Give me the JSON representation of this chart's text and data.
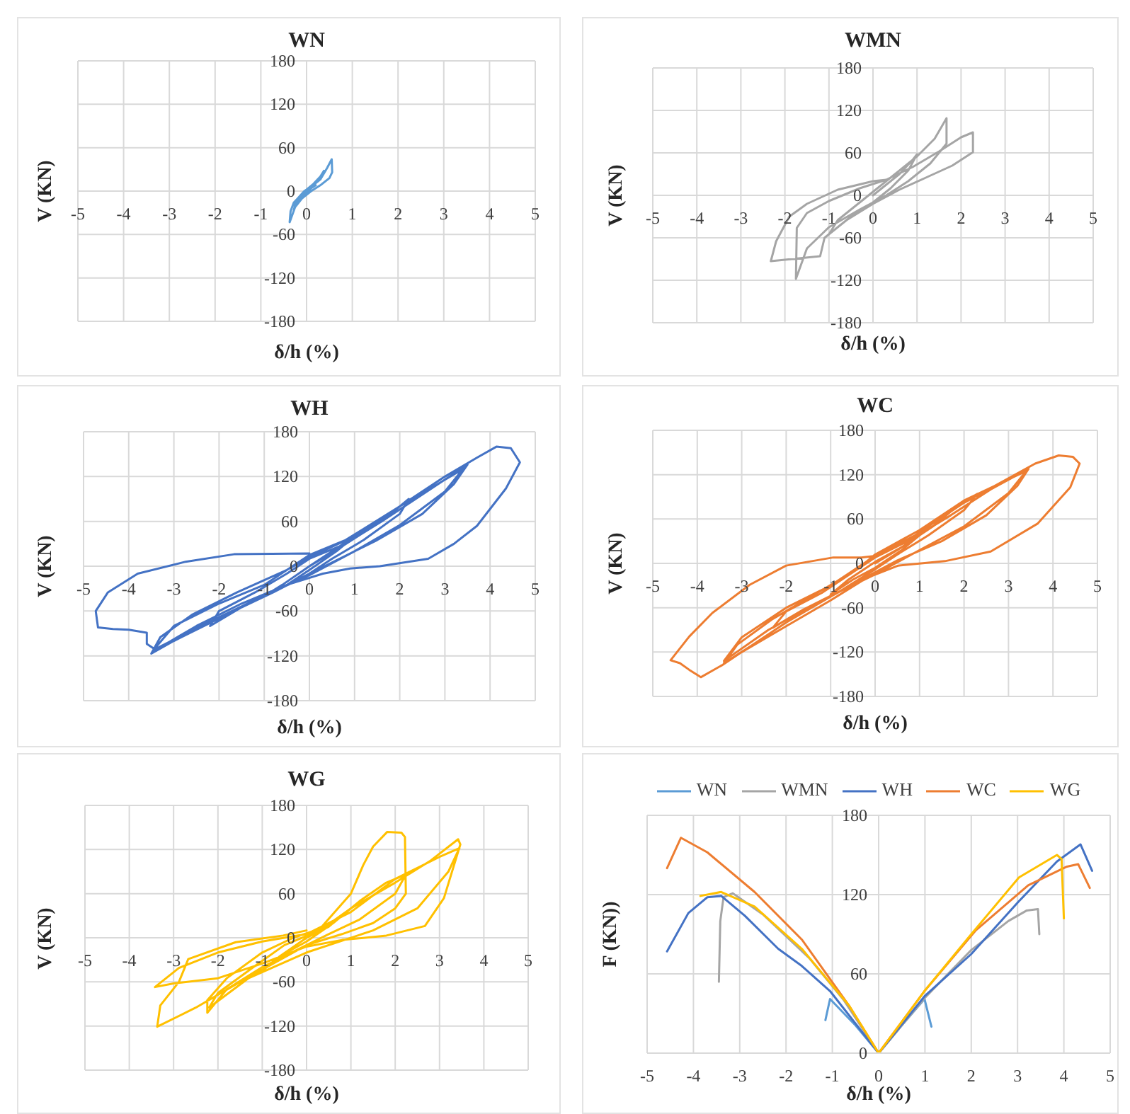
{
  "chart_data": [
    {
      "type": "line",
      "title": "WN",
      "xlabel": "δ/h (%)",
      "ylabel": "V (KN)",
      "xlim": [
        -5,
        5
      ],
      "xticks": [
        -5,
        -4,
        -3,
        -2,
        -1,
        0,
        1,
        2,
        3,
        4,
        5
      ],
      "ylim": [
        -180,
        180
      ],
      "yticks": [
        -180,
        -120,
        -60,
        0,
        60,
        120,
        180
      ],
      "grid": true,
      "marker": "none",
      "series": [
        {
          "color": "#5b9bd5",
          "x": [
            0,
            0.1,
            0.2,
            0.12,
            0,
            -0.1,
            -0.2,
            -0.12,
            0,
            0.15,
            0.3,
            0.38,
            0.3,
            0.1,
            -0.05,
            -0.2,
            -0.28,
            -0.22,
            -0.05,
            0.1,
            0.3,
            0.45,
            0.55,
            0.56,
            0.5,
            0.3,
            0.1,
            -0.1,
            -0.25,
            -0.37,
            -0.35,
            -0.28,
            -0.1,
            0.05,
            0.2
          ],
          "values": [
            0,
            6,
            12,
            6,
            -2,
            -8,
            -14,
            -6,
            2,
            10,
            20,
            28,
            18,
            4,
            -6,
            -16,
            -26,
            -12,
            0,
            6,
            16,
            32,
            44,
            26,
            18,
            8,
            0,
            -10,
            -22,
            -43,
            -28,
            -16,
            -4,
            2,
            8
          ]
        }
      ]
    },
    {
      "type": "line",
      "title": "WMN",
      "xlabel": "δ/h (%)",
      "ylabel": "V (KN)",
      "xlim": [
        -5,
        5
      ],
      "xticks": [
        -5,
        -4,
        -3,
        -2,
        -1,
        0,
        1,
        2,
        3,
        4,
        5
      ],
      "ylim": [
        -180,
        180
      ],
      "yticks": [
        -180,
        -120,
        -60,
        0,
        60,
        120,
        180
      ],
      "grid": true,
      "marker": "none",
      "series": [
        {
          "color": "#a5a5a5",
          "x": [
            0,
            0.3,
            0.6,
            0.9,
            1.0,
            0.8,
            0.4,
            0,
            -0.4,
            -0.8,
            -1.0,
            -0.8,
            -0.4,
            0,
            0.5,
            1.0,
            1.4,
            1.67,
            1.67,
            1.3,
            0.8,
            0.3,
            -0.3,
            -1.0,
            -1.5,
            -1.75,
            -1.73,
            -1.5,
            -1.0,
            -0.3,
            0.3,
            0.9,
            1.5,
            2.0,
            2.27,
            2.27,
            1.8,
            1.2,
            0.6,
            0,
            -0.6,
            -1.1,
            -1.2,
            -2.32,
            -2.2,
            -1.9,
            -1.5,
            -0.8,
            0,
            0.3
          ],
          "values": [
            0,
            15,
            30,
            50,
            58,
            35,
            10,
            -10,
            -25,
            -45,
            -55,
            -35,
            -15,
            5,
            30,
            55,
            80,
            109,
            73,
            45,
            20,
            0,
            -20,
            -45,
            -75,
            -118,
            -46,
            -25,
            -8,
            10,
            22,
            40,
            62,
            82,
            89,
            61,
            42,
            25,
            8,
            -12,
            -35,
            -60,
            -86,
            -93,
            -65,
            -30,
            -12,
            8,
            20,
            22
          ]
        }
      ]
    },
    {
      "type": "line",
      "title": "WH",
      "xlabel": "δ/h (%)",
      "ylabel": "V (KN)",
      "xlim": [
        -5,
        5
      ],
      "xticks": [
        -5,
        -4,
        -3,
        -2,
        -1,
        0,
        1,
        2,
        3,
        4,
        5
      ],
      "ylim": [
        -180,
        180
      ],
      "yticks": [
        -180,
        -120,
        -60,
        0,
        60,
        120,
        180
      ],
      "grid": true,
      "marker": "none",
      "series": [
        {
          "color": "#4472c4",
          "x": [
            0,
            0.5,
            1.0,
            0.6,
            0,
            -0.5,
            -1.0,
            -0.6,
            0,
            0.5,
            1.2,
            1.8,
            2.2,
            2.0,
            1.2,
            0.5,
            0,
            -0.8,
            -1.5,
            -2.2,
            -2.0,
            -1.2,
            -0.5,
            0,
            0.8,
            1.6,
            2.6,
            3.5,
            3.2,
            2.5,
            1.5,
            0.5,
            0,
            -1.0,
            -2.0,
            -3.0,
            -3.5,
            -3.3,
            -2.6,
            -1.6,
            -0.5,
            0,
            1.0,
            2.0,
            3.4,
            3.0,
            2.0,
            1.0,
            0,
            -1.2,
            -2.4,
            -3.45,
            -3.0,
            -2.0,
            -1.0,
            0,
            0.8,
            2.0,
            3.0,
            3.7,
            4.14,
            4.46,
            4.66,
            4.35,
            3.71,
            3.2,
            2.63,
            1.56,
            0.9,
            0.3,
            -0.5,
            -1.5,
            -2.5,
            -3.4,
            -3.6,
            -3.6,
            -4.0,
            -4.35,
            -4.68,
            -4.73,
            -4.46,
            -3.8,
            -2.74,
            -1.67,
            0
          ],
          "values": [
            0,
            20,
            40,
            20,
            -5,
            -25,
            -40,
            -25,
            0,
            18,
            45,
            70,
            90,
            70,
            35,
            10,
            -10,
            -35,
            -55,
            -80,
            -60,
            -35,
            -10,
            10,
            30,
            60,
            100,
            136,
            110,
            70,
            35,
            5,
            -10,
            -40,
            -70,
            -100,
            -117,
            -95,
            -65,
            -35,
            -5,
            12,
            40,
            80,
            130,
            100,
            55,
            20,
            -12,
            -45,
            -80,
            -112,
            -80,
            -50,
            -25,
            15,
            35,
            80,
            120,
            145,
            160,
            158,
            139,
            104,
            54,
            30,
            10,
            0,
            -3,
            -10,
            -25,
            -50,
            -80,
            -112,
            -104,
            -89,
            -85,
            -84,
            -82,
            -60,
            -35,
            -10,
            6,
            16,
            17
          ]
        }
      ]
    },
    {
      "type": "line",
      "title": "WC",
      "xlabel": "δ/h (%)",
      "ylabel": "V (KN)",
      "xlim": [
        -5,
        5
      ],
      "xticks": [
        -5,
        -4,
        -3,
        -2,
        -1,
        0,
        1,
        2,
        3,
        4,
        5
      ],
      "ylim": [
        -180,
        180
      ],
      "yticks": [
        -180,
        -120,
        -60,
        0,
        60,
        120,
        180
      ],
      "grid": true,
      "marker": "none",
      "series": [
        {
          "color": "#ed7d31",
          "x": [
            0,
            0.5,
            1.0,
            0.6,
            0,
            -0.5,
            -1.0,
            -0.6,
            0,
            0.6,
            1.3,
            1.9,
            2.3,
            2.0,
            1.2,
            0.5,
            0,
            -0.8,
            -1.6,
            -2.3,
            -2.0,
            -1.2,
            -0.5,
            0,
            0.8,
            1.7,
            2.6,
            3.45,
            3.2,
            2.5,
            1.5,
            0.5,
            0,
            -1.0,
            -2.0,
            -2.8,
            -3.4,
            -3.1,
            -2.3,
            -1.3,
            -0.4,
            0,
            1.0,
            2.0,
            3.4,
            3.0,
            2.0,
            1.0,
            0,
            -1.2,
            -2.4,
            -3.4,
            -3.0,
            -2.0,
            -1.0,
            0,
            0.9,
            2.0,
            3.0,
            3.6,
            4.13,
            4.45,
            4.6,
            4.39,
            3.66,
            2.6,
            1.57,
            0.52,
            -0.2,
            -1.0,
            -2.0,
            -3.0,
            -3.45,
            -3.92,
            -4.18,
            -4.39,
            -4.6,
            -4.18,
            -3.66,
            -2.82,
            -2.0,
            -0.94,
            -0.31,
            0
          ],
          "values": [
            0,
            18,
            38,
            18,
            -6,
            -22,
            -42,
            -22,
            2,
            22,
            50,
            80,
            94,
            72,
            38,
            12,
            -8,
            -38,
            -62,
            -87,
            -65,
            -40,
            -12,
            8,
            32,
            65,
            100,
            128,
            105,
            65,
            30,
            4,
            -12,
            -45,
            -80,
            -112,
            -135,
            -110,
            -75,
            -40,
            -8,
            12,
            45,
            85,
            125,
            95,
            50,
            18,
            -15,
            -50,
            -90,
            -132,
            -100,
            -60,
            -30,
            10,
            38,
            82,
            115,
            135,
            146,
            144,
            135,
            103,
            54,
            16,
            3,
            -3,
            -20,
            -50,
            -85,
            -120,
            -138,
            -154,
            -144,
            -135,
            -131,
            -99,
            -67,
            -29,
            -3,
            8,
            8,
            10
          ]
        }
      ]
    },
    {
      "type": "line",
      "title": "WG",
      "xlabel": "δ/h (%)",
      "ylabel": "V (KN)",
      "xlim": [
        -5,
        5
      ],
      "xticks": [
        -5,
        -4,
        -3,
        -2,
        -1,
        0,
        1,
        2,
        3,
        4,
        5
      ],
      "ylim": [
        -180,
        180
      ],
      "yticks": [
        -180,
        -120,
        -60,
        0,
        60,
        120,
        180
      ],
      "grid": true,
      "marker": "none",
      "series": [
        {
          "color": "#ffc000",
          "x": [
            0,
            0.5,
            1.0,
            0.6,
            0,
            -0.6,
            -1.0,
            -0.6,
            0,
            0.6,
            1.2,
            1.8,
            2.24,
            2.0,
            1.2,
            0.5,
            0,
            -1.0,
            -1.8,
            -2.24,
            -2.24,
            -1.8,
            -1.0,
            -0.3,
            0.3,
            1.0,
            1.28,
            1.5,
            1.82,
            2.14,
            2.22,
            2.24,
            2.0,
            1.5,
            0.8,
            0,
            -1.2,
            -2.2,
            -2.0,
            -1.2,
            -0.5,
            0.3,
            1.0,
            2.0,
            2.8,
            3.42,
            3.47,
            3.1,
            2.67,
            1.8,
            0.8,
            0,
            -1.0,
            -2.0,
            -3.0,
            -3.42,
            -2.88,
            -2.0,
            -1.0,
            0,
            1.0,
            2.0,
            3.0,
            3.45,
            3.2,
            2.5,
            1.5,
            0,
            -1.5,
            -2.5,
            -3.37,
            -3.3,
            -2.88,
            -2.67,
            -1.6,
            -0.53,
            0
          ],
          "values": [
            0,
            15,
            40,
            20,
            -5,
            -25,
            -45,
            -25,
            0,
            20,
            50,
            75,
            86,
            60,
            25,
            5,
            -10,
            -40,
            -70,
            -102,
            -85,
            -55,
            -20,
            0,
            12,
            60,
            99,
            124,
            144,
            143,
            137,
            60,
            40,
            20,
            5,
            -10,
            -50,
            -95,
            -75,
            -40,
            -10,
            10,
            40,
            75,
            105,
            134,
            127,
            54,
            16,
            3,
            -3,
            -12,
            -35,
            -55,
            -62,
            -67,
            -41,
            -20,
            -5,
            5,
            35,
            80,
            110,
            122,
            90,
            40,
            10,
            -20,
            -60,
            -95,
            -121,
            -92,
            -60,
            -29,
            -6,
            3,
            10
          ]
        }
      ]
    },
    {
      "type": "line",
      "xlabel": "δ/h (%)",
      "ylabel": "F (KN))",
      "xlim": [
        -5,
        5
      ],
      "xticks": [
        -5,
        -4,
        -3,
        -2,
        -1,
        0,
        1,
        2,
        3,
        4,
        5
      ],
      "ylim": [
        0,
        180
      ],
      "yticks": [
        0,
        60,
        120,
        180
      ],
      "grid": true,
      "marker": "none",
      "legend": "top",
      "series": [
        {
          "name": "WN",
          "color": "#5b9bd5",
          "x": [
            -1.15,
            -1.05,
            -0.5,
            0,
            0.5,
            0.99,
            1.14
          ],
          "values": [
            25,
            41,
            21,
            0,
            21,
            41,
            20
          ]
        },
        {
          "name": "WMN",
          "color": "#a5a5a5",
          "x": [
            -3.45,
            -3.42,
            -3.35,
            -3.15,
            -2.5,
            -1.5,
            -0.75,
            0,
            1,
            2,
            2.8,
            3.2,
            3.44,
            3.47
          ],
          "values": [
            54,
            100,
            118,
            121,
            105,
            72,
            40,
            0,
            42,
            78,
            100,
            108,
            109,
            90
          ]
        },
        {
          "name": "WH",
          "color": "#4472c4",
          "x": [
            -4.57,
            -4.11,
            -3.7,
            -3.4,
            -2.89,
            -2.17,
            -1.66,
            -1.05,
            0,
            0.99,
            2.0,
            3.03,
            3.85,
            4.36,
            4.61
          ],
          "values": [
            77,
            106,
            118,
            119,
            104,
            79,
            66,
            47,
            0,
            43,
            75,
            115,
            145,
            158,
            138
          ]
        },
        {
          "name": "WC",
          "color": "#ed7d31",
          "x": [
            -4.57,
            -4.27,
            -3.7,
            -2.68,
            -1.66,
            -0.64,
            0,
            0.99,
            2.1,
            3.23,
            4.05,
            4.31,
            4.56
          ],
          "values": [
            140,
            163,
            152,
            122,
            86,
            36,
            0,
            47,
            93,
            127,
            141,
            143,
            125
          ]
        },
        {
          "name": "WG",
          "color": "#ffc000",
          "x": [
            -3.85,
            -3.4,
            -2.68,
            -1.66,
            -0.64,
            0,
            0.99,
            2.0,
            3.03,
            3.85,
            3.95,
            4.0
          ],
          "values": [
            119,
            122,
            111,
            79,
            36,
            0,
            47,
            90,
            133,
            150,
            147,
            102
          ]
        }
      ]
    }
  ]
}
